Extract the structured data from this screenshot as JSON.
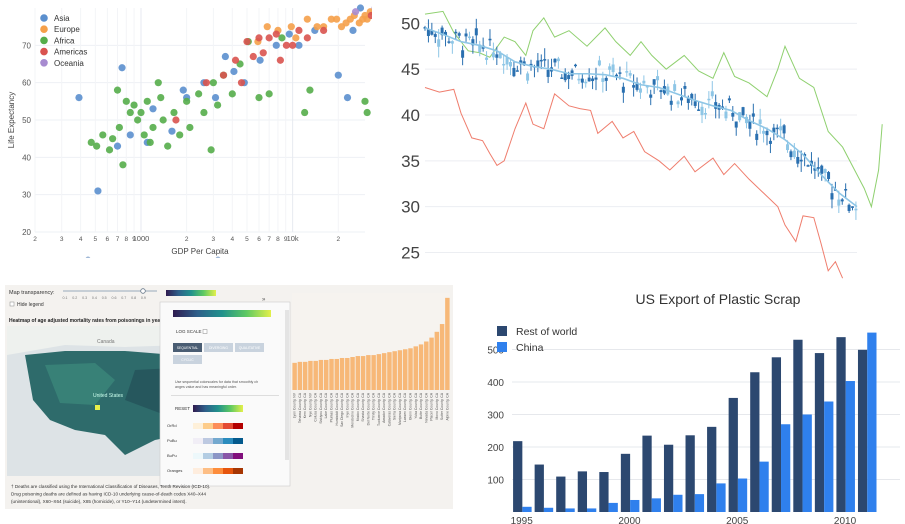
{
  "chart_data": [
    {
      "type": "scatter",
      "xlabel": "GDP Per Capita",
      "ylabel": "Life Expectancy",
      "xscale": "log",
      "xlim": [
        200,
        30000
      ],
      "ylim": [
        20,
        80
      ],
      "grid": true,
      "legend_position": "top-left",
      "xticks": [
        {
          "v": 200,
          "t": "2"
        },
        {
          "v": 300,
          "t": "3"
        },
        {
          "v": 400,
          "t": "4"
        },
        {
          "v": 500,
          "t": "5"
        },
        {
          "v": 600,
          "t": "6"
        },
        {
          "v": 700,
          "t": "7"
        },
        {
          "v": 800,
          "t": "8"
        },
        {
          "v": 900,
          "t": "9"
        },
        {
          "v": 1000,
          "t": "1000"
        },
        {
          "v": 2000,
          "t": "2"
        },
        {
          "v": 3000,
          "t": "3"
        },
        {
          "v": 4000,
          "t": "4"
        },
        {
          "v": 5000,
          "t": "5"
        },
        {
          "v": 6000,
          "t": "6"
        },
        {
          "v": 7000,
          "t": "7"
        },
        {
          "v": 8000,
          "t": "8"
        },
        {
          "v": 9000,
          "t": "9"
        },
        {
          "v": 10000,
          "t": "10k"
        },
        {
          "v": 20000,
          "t": "2"
        }
      ],
      "yticks": [
        20,
        30,
        40,
        50,
        60,
        70
      ],
      "series": [
        {
          "name": "Asia",
          "color": "#5b8fce",
          "points": [
            [
              390,
              56
            ],
            [
              520,
              31
            ],
            [
              700,
              43
            ],
            [
              750,
              64
            ],
            [
              850,
              46
            ],
            [
              1100,
              44
            ],
            [
              1200,
              53
            ],
            [
              1600,
              47
            ],
            [
              1900,
              58
            ],
            [
              2000,
              56
            ],
            [
              2600,
              60
            ],
            [
              3100,
              56
            ],
            [
              3600,
              67
            ],
            [
              4100,
              63
            ],
            [
              4800,
              60
            ],
            [
              6100,
              66
            ],
            [
              7800,
              70
            ],
            [
              9500,
              73
            ],
            [
              11000,
              70
            ],
            [
              14000,
              74
            ],
            [
              20000,
              62
            ],
            [
              23000,
              56
            ],
            [
              25000,
              74
            ],
            [
              28000,
              80
            ]
          ]
        },
        {
          "name": "Europe",
          "color": "#f5a04a",
          "points": [
            [
              5900,
              71
            ],
            [
              6800,
              75
            ],
            [
              8000,
              74
            ],
            [
              9800,
              75
            ],
            [
              10500,
              72
            ],
            [
              12500,
              77
            ],
            [
              14500,
              75
            ],
            [
              16000,
              75
            ],
            [
              18000,
              77
            ],
            [
              19500,
              77
            ],
            [
              21000,
              75
            ],
            [
              22500,
              76
            ],
            [
              24000,
              77
            ],
            [
              25500,
              78
            ],
            [
              27500,
              76
            ],
            [
              29000,
              77
            ],
            [
              30000,
              78
            ],
            [
              31000,
              77
            ],
            [
              32500,
              79
            ],
            [
              36000,
              79
            ]
          ]
        },
        {
          "name": "Africa",
          "color": "#55ad4a",
          "points": [
            [
              470,
              44
            ],
            [
              510,
              43
            ],
            [
              560,
              46
            ],
            [
              620,
              42
            ],
            [
              650,
              45
            ],
            [
              700,
              58
            ],
            [
              720,
              48
            ],
            [
              760,
              38
            ],
            [
              800,
              55
            ],
            [
              850,
              52
            ],
            [
              900,
              54
            ],
            [
              950,
              50
            ],
            [
              1000,
              52
            ],
            [
              1050,
              46
            ],
            [
              1100,
              55
            ],
            [
              1150,
              44
            ],
            [
              1200,
              48
            ],
            [
              1300,
              60
            ],
            [
              1350,
              56
            ],
            [
              1400,
              50
            ],
            [
              1500,
              43
            ],
            [
              1650,
              52
            ],
            [
              1800,
              46
            ],
            [
              2000,
              55
            ],
            [
              2100,
              48
            ],
            [
              2400,
              57
            ],
            [
              2600,
              52
            ],
            [
              2900,
              42
            ],
            [
              3000,
              60
            ],
            [
              3200,
              54
            ],
            [
              3500,
              62
            ],
            [
              4000,
              57
            ],
            [
              4500,
              65
            ],
            [
              5100,
              71
            ],
            [
              6000,
              56
            ],
            [
              7000,
              57
            ],
            [
              8500,
              72
            ],
            [
              12000,
              52
            ],
            [
              13000,
              58
            ],
            [
              30000,
              55
            ],
            [
              31000,
              52
            ]
          ]
        },
        {
          "name": "Americas",
          "color": "#d9534f",
          "points": [
            [
              1700,
              50
            ],
            [
              2700,
              60
            ],
            [
              3500,
              62
            ],
            [
              4200,
              66
            ],
            [
              4600,
              60
            ],
            [
              5000,
              71
            ],
            [
              5500,
              67
            ],
            [
              6000,
              72
            ],
            [
              6400,
              68
            ],
            [
              7000,
              72
            ],
            [
              7800,
              73
            ],
            [
              8300,
              66
            ],
            [
              9100,
              70
            ],
            [
              10000,
              70
            ],
            [
              11000,
              74
            ],
            [
              12500,
              72
            ],
            [
              16000,
              74
            ],
            [
              33000,
              78
            ],
            [
              38000,
              78
            ]
          ]
        },
        {
          "name": "Oceania",
          "color": "#a78bd0",
          "points": [
            [
              26000,
              79
            ],
            [
              35000,
              80
            ]
          ]
        }
      ]
    },
    {
      "type": "line",
      "subtype": "candlestick-with-bands",
      "yticks": [
        25,
        30,
        35,
        40,
        45,
        50
      ],
      "ylim": [
        22,
        52
      ],
      "xlim": [
        0,
        120
      ],
      "grid": true,
      "upper_color": "#8fd06f",
      "lower_color": "#ef7d6d",
      "mid_color": "#8ec6e6",
      "candle_color": "#2a70b0",
      "mid": [
        [
          0,
          49.5
        ],
        [
          5,
          48.8
        ],
        [
          10,
          48
        ],
        [
          15,
          47.6
        ],
        [
          20,
          47
        ],
        [
          25,
          45.8
        ],
        [
          30,
          45.3
        ],
        [
          35,
          45
        ],
        [
          40,
          44.5
        ],
        [
          45,
          44.5
        ],
        [
          50,
          44.4
        ],
        [
          55,
          44
        ],
        [
          60,
          43.3
        ],
        [
          65,
          43
        ],
        [
          70,
          42.3
        ],
        [
          75,
          41.6
        ],
        [
          80,
          41
        ],
        [
          85,
          40.5
        ],
        [
          90,
          39.4
        ],
        [
          95,
          38.5
        ],
        [
          100,
          37.3
        ],
        [
          105,
          35.7
        ],
        [
          110,
          33.5
        ],
        [
          115,
          31.5
        ],
        [
          120,
          30
        ]
      ],
      "upper": [
        [
          0,
          51
        ],
        [
          5,
          51.3
        ],
        [
          8,
          49
        ],
        [
          12,
          47
        ],
        [
          15,
          46.8
        ],
        [
          18,
          46.3
        ],
        [
          22,
          48.5
        ],
        [
          25,
          48
        ],
        [
          28,
          46.5
        ],
        [
          30,
          49.2
        ],
        [
          33,
          50.6
        ],
        [
          36,
          48.5
        ],
        [
          40,
          49.2
        ],
        [
          45,
          47.5
        ],
        [
          50,
          49.5
        ],
        [
          53,
          48
        ],
        [
          57,
          46.5
        ],
        [
          60,
          48
        ],
        [
          63,
          46.5
        ],
        [
          67,
          45
        ],
        [
          72,
          46.5
        ],
        [
          76,
          44.8
        ],
        [
          80,
          44
        ],
        [
          83,
          46.8
        ],
        [
          86,
          44.2
        ],
        [
          90,
          43.5
        ],
        [
          95,
          42
        ],
        [
          98,
          45
        ],
        [
          100,
          47.5
        ],
        [
          104,
          44
        ],
        [
          108,
          43
        ],
        [
          112,
          38.2
        ],
        [
          116,
          36.5
        ],
        [
          120,
          33.5
        ],
        [
          122,
          32
        ],
        [
          124,
          30
        ],
        [
          126,
          34
        ],
        [
          127,
          39
        ]
      ],
      "lower": [
        [
          0,
          43
        ],
        [
          4,
          42.5
        ],
        [
          8,
          42.8
        ],
        [
          10,
          40.2
        ],
        [
          13,
          37.5
        ],
        [
          16,
          37.2
        ],
        [
          18,
          35.8
        ],
        [
          20,
          34.5
        ],
        [
          22,
          35
        ],
        [
          25,
          38.5
        ],
        [
          28,
          41.3
        ],
        [
          30,
          39
        ],
        [
          33,
          38.5
        ],
        [
          36,
          42.3
        ],
        [
          40,
          41
        ],
        [
          43,
          40.7
        ],
        [
          46,
          40.5
        ],
        [
          48,
          38
        ],
        [
          52,
          39.3
        ],
        [
          55,
          37.5
        ],
        [
          58,
          38.2
        ],
        [
          61,
          36
        ],
        [
          65,
          35
        ],
        [
          68,
          34
        ],
        [
          72,
          35.5
        ],
        [
          75,
          33.8
        ],
        [
          80,
          35.3
        ],
        [
          83,
          33.5
        ],
        [
          86,
          34.7
        ],
        [
          90,
          33
        ],
        [
          94,
          31.5
        ],
        [
          98,
          30
        ],
        [
          100,
          28
        ],
        [
          103,
          26.2
        ],
        [
          105,
          29
        ],
        [
          108,
          28.8
        ],
        [
          110,
          26
        ],
        [
          112,
          23
        ],
        [
          114,
          24
        ],
        [
          116,
          22.2
        ]
      ]
    },
    {
      "type": "bar",
      "title": "Heatmap of age adjusted mortality rates from poisonings in year",
      "controls": {
        "transparency_label": "Map transparency:",
        "transparency_ticks": [
          "0.1",
          "0.2",
          "0.3",
          "0.4",
          "0.5",
          "0.6",
          "0.7",
          "0.8",
          "0.9"
        ],
        "hide_legend_label": "Hide legend",
        "log_scale_label": "LOG SCALE",
        "scale_buttons": [
          "SEQUENTIAL",
          "DIVERGING",
          "QUALITATIVE",
          "CYCLIC"
        ],
        "scale_help": "Use sequential colorscales for data that smoothly changes value and has meaningful order.",
        "reset_label": "RESET",
        "palette_names": [
          "OrRd",
          "PuBu",
          "BuPu",
          "Oranges"
        ]
      },
      "map_labels": [
        "Canada",
        "United States"
      ],
      "bar_values": [
        28,
        29,
        29,
        30,
        30,
        31,
        31,
        32,
        32,
        33,
        33,
        34,
        35,
        35,
        36,
        36,
        37,
        38,
        39,
        40,
        41,
        42,
        43,
        45,
        47,
        50,
        54,
        60,
        68,
        95
      ],
      "bar_labels": [
        "Lyon County, NV",
        "Tehama County, CA",
        "Kern County, CA",
        "Nye County, NV",
        "Colusa County, CA",
        "Siskiyou County, CA",
        "Lake County, CA",
        "Plumas County, CA",
        "Humboldt County, CA",
        "San Diego County, CA",
        "Inyo County, CA",
        "Mendocino County, CA",
        "Modoc County, CA",
        "Shasta County, CA",
        "Del Norte County, CA",
        "Trinity County, CA",
        "Tuolumne County, CA",
        "Amador County, CA",
        "Calaveras County, CA",
        "Sierra County, CA",
        "Mariposa County, CA",
        "Lassen County, CA",
        "Glenn County, CA",
        "Yuba County, CA",
        "Butte County, CA",
        "Nevada County, CA",
        "Placer County, CA",
        "Mono County, CA",
        "Sutter County, CA",
        "Alpine County, CA"
      ],
      "footnotes": [
        "† Deaths are classified using the International Classification of Diseases, Tenth Revision (ICD-10).",
        "Drug poisoning deaths are defined as having ICD-10 underlying cause-of-death codes X40–X44",
        "(unintentional), X60–X64 (suicide), X85 (homicide), or Y10–Y14 (undetermined intent)."
      ]
    },
    {
      "type": "bar",
      "title": "US Export of Plastic Scrap",
      "categories": [
        1995,
        1996,
        1997,
        1998,
        1999,
        2000,
        2001,
        2002,
        2003,
        2004,
        2005,
        2006,
        2007,
        2008,
        2009,
        2010,
        2011,
        2012
      ],
      "xticks": [
        1995,
        2000,
        2005,
        2010
      ],
      "yticks": [
        100,
        200,
        300,
        400,
        500
      ],
      "ylim": [
        0,
        560
      ],
      "legend_position": "top-left",
      "series": [
        {
          "name": "Rest of world",
          "color": "#2c4870",
          "values": [
            218,
            146,
            109,
            125,
            123,
            179,
            235,
            207,
            236,
            262,
            351,
            430,
            476,
            530,
            489,
            538,
            499,
            0
          ]
        },
        {
          "name": "China",
          "color": "#2f80ed",
          "values": [
            16,
            13,
            11,
            11,
            28,
            37,
            42,
            53,
            55,
            88,
            103,
            155,
            270,
            300,
            340,
            403,
            552,
            0
          ]
        }
      ]
    }
  ]
}
